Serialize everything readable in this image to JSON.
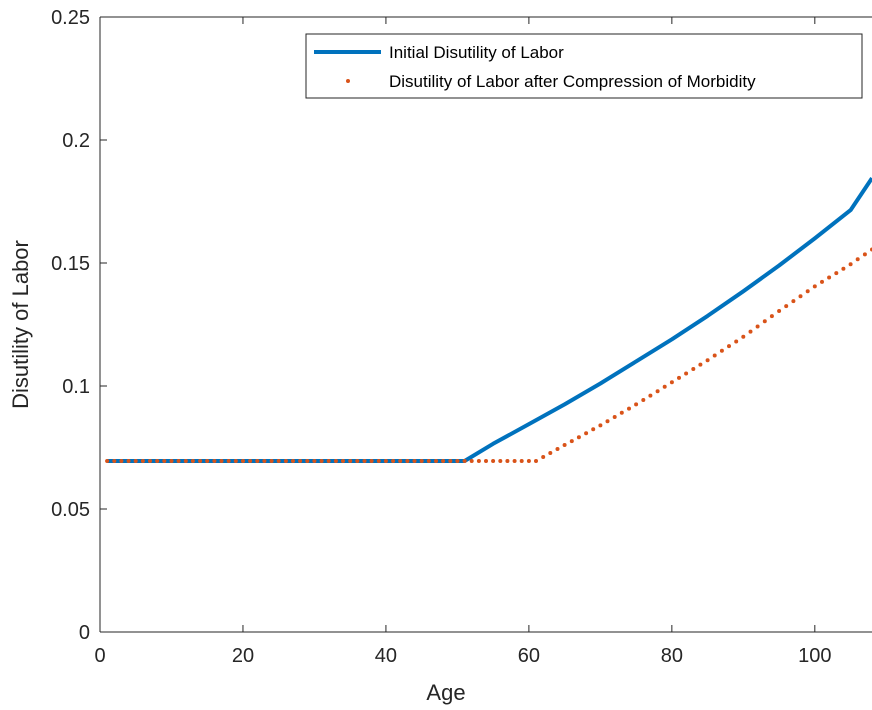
{
  "chart_data": {
    "type": "line",
    "title": "",
    "xlabel": "Age",
    "ylabel": "Disutility of Labor",
    "xlim": [
      0,
      108
    ],
    "ylim": [
      0,
      0.25
    ],
    "xticks": [
      0,
      20,
      40,
      60,
      80,
      100
    ],
    "yticks": [
      0,
      0.05,
      0.1,
      0.15,
      0.2,
      0.25
    ],
    "ytick_labels": [
      "0",
      "0.05",
      "0.1",
      "0.15",
      "0.2",
      "0.25"
    ],
    "grid": false,
    "legend_position": "top-right",
    "series": [
      {
        "name": "Initial Disutility of Labor",
        "style": "solid",
        "color": "#0072BD",
        "x": [
          1,
          10,
          20,
          30,
          40,
          51,
          55,
          60,
          65,
          70,
          75,
          80,
          85,
          90,
          95,
          100,
          105,
          108
        ],
        "y": [
          0.0695,
          0.0695,
          0.0695,
          0.0695,
          0.0695,
          0.0695,
          0.0765,
          0.0845,
          0.0925,
          0.101,
          0.11,
          0.119,
          0.1285,
          0.1385,
          0.149,
          0.16,
          0.1715,
          0.1845
        ]
      },
      {
        "name": "Disutility of Labor after Compression of Morbidity",
        "style": "dotted",
        "color": "#D95319",
        "x": [
          1,
          10,
          20,
          30,
          40,
          50,
          61,
          65,
          70,
          75,
          80,
          85,
          90,
          95,
          100,
          105,
          108
        ],
        "y": [
          0.0695,
          0.0695,
          0.0695,
          0.0695,
          0.0695,
          0.0695,
          0.0695,
          0.076,
          0.084,
          0.0925,
          0.1015,
          0.1105,
          0.12,
          0.1305,
          0.1405,
          0.1495,
          0.1555
        ]
      }
    ]
  }
}
